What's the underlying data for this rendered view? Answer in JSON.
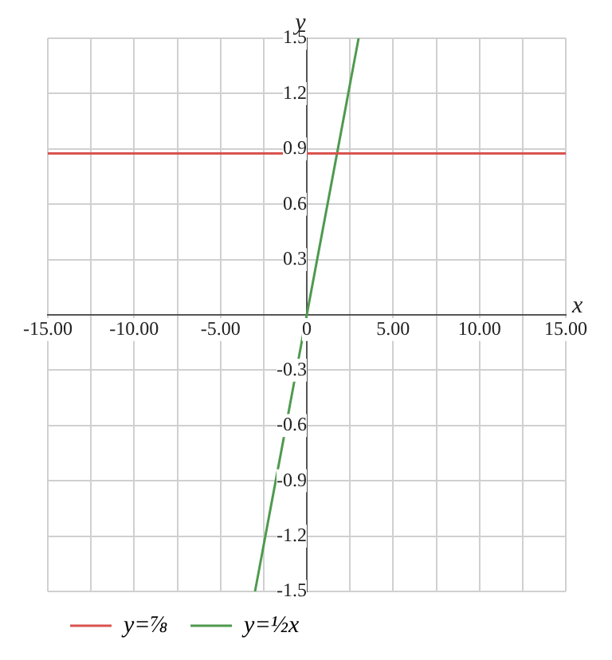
{
  "chart_data": {
    "type": "line",
    "xlabel": "x",
    "ylabel": "y",
    "xlim": [
      -15,
      15
    ],
    "ylim": [
      -1.5,
      1.5
    ],
    "xticks": [
      {
        "value": -15,
        "label": "-15.00"
      },
      {
        "value": -12.5,
        "label": null
      },
      {
        "value": -10,
        "label": "-10.00"
      },
      {
        "value": -7.5,
        "label": null
      },
      {
        "value": -5,
        "label": "-5.00"
      },
      {
        "value": -2.5,
        "label": null
      },
      {
        "value": 0,
        "label": "0"
      },
      {
        "value": 2.5,
        "label": null
      },
      {
        "value": 5,
        "label": "5.00"
      },
      {
        "value": 7.5,
        "label": null
      },
      {
        "value": 10,
        "label": "10.00"
      },
      {
        "value": 12.5,
        "label": null
      },
      {
        "value": 15,
        "label": "15.00"
      }
    ],
    "yticks": [
      -1.5,
      -1.2,
      -0.9,
      -0.6,
      -0.3,
      {
        "value": 0,
        "label": null
      },
      0.3,
      0.6,
      0.9,
      1.2,
      1.5
    ],
    "series": [
      {
        "name": "y=⅞",
        "color": "#d9534f",
        "x": [
          -15,
          15
        ],
        "values": [
          0.875,
          0.875
        ]
      },
      {
        "name": "y=½x",
        "color": "#4e9a4e",
        "x": [
          -3,
          3
        ],
        "values": [
          -1.5,
          1.5
        ]
      }
    ],
    "grid": true,
    "legend": "bottom left",
    "marker": "none",
    "line_style": "solid"
  }
}
